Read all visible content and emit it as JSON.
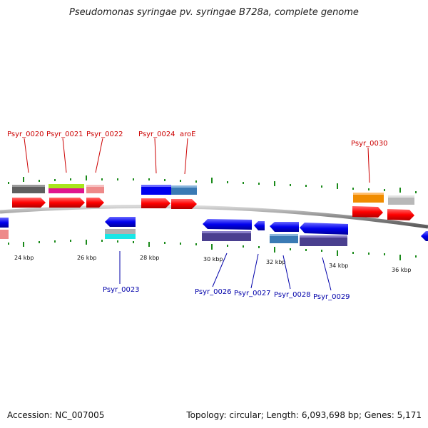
{
  "header": {
    "title": "Pseudomonas syringae pv. syringae B728a, complete genome"
  },
  "footer": {
    "accession": "Accession: NC_007005",
    "summary": "Topology: circular; Length: 6,093,698 bp; Genes: 5,171"
  },
  "scale": {
    "kbp_labels": [
      "24 kbp",
      "26 kbp",
      "28 kbp",
      "30 kbp",
      "32 kbp",
      "34 kbp",
      "36 kbp"
    ]
  },
  "genes": {
    "forward_labels": [
      "Psyr_0020",
      "Psyr_0021",
      "Psyr_0022",
      "Psyr_0024",
      "aroE",
      "Psyr_0030"
    ],
    "reverse_labels": [
      "Psyr_0023",
      "Psyr_0026",
      "Psyr_0027",
      "Psyr_0028",
      "Psyr_0029"
    ]
  },
  "colors": {
    "forward_label": "#cc0000",
    "reverse_label": "#0000aa",
    "forward_gene": "#ff0000",
    "reverse_gene": "#0000ee",
    "backbone": "#888888",
    "tick": "#1a8a1a"
  }
}
